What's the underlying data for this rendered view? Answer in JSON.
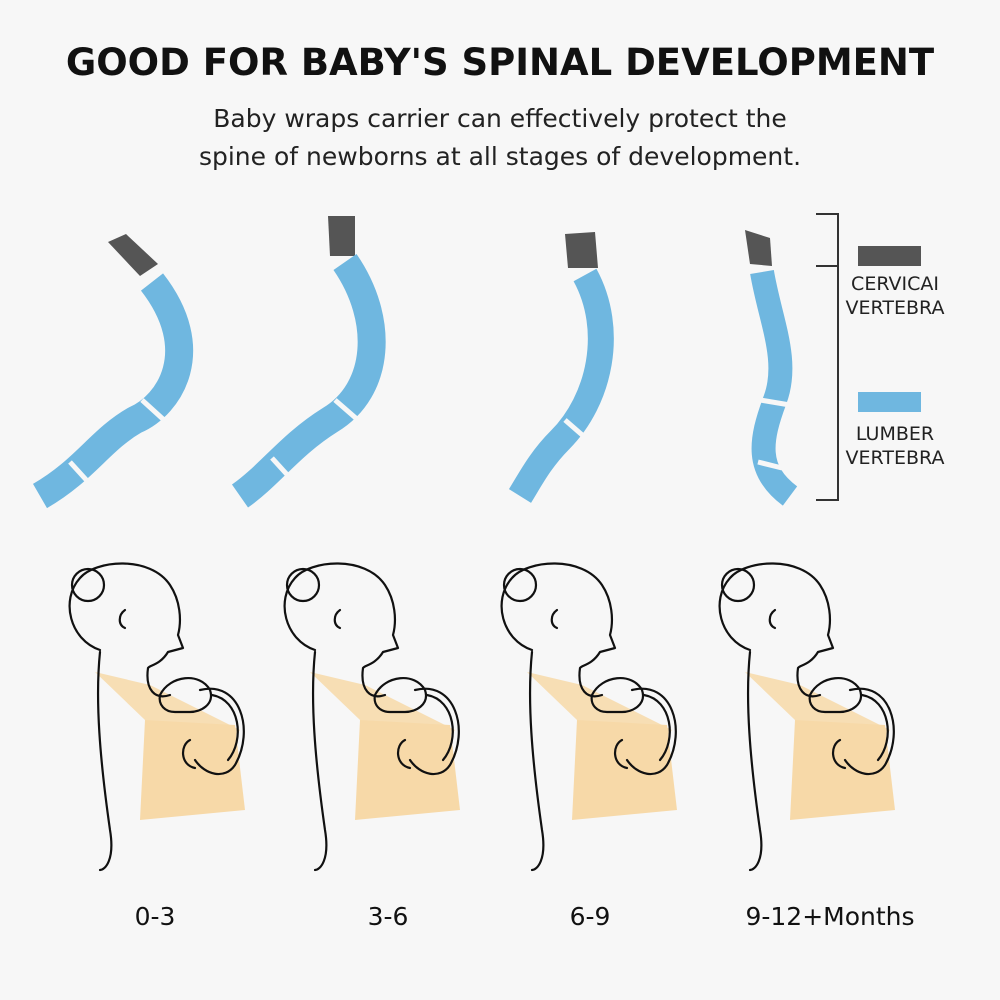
{
  "header": {
    "title": "GOOD FOR BABY'S SPINAL DEVELOPMENT",
    "subtitle": [
      "Baby wraps carrier can effectively protect the",
      "spine of newborns at all stages of development."
    ]
  },
  "legend": [
    {
      "lines": [
        "CERVICAI",
        "VERTEBRA"
      ]
    },
    {
      "lines": [
        "LUMBER",
        "VERTEBRA"
      ]
    }
  ],
  "stages": [
    "0-3",
    "3-6",
    "6-9",
    "9-12+Months"
  ]
}
